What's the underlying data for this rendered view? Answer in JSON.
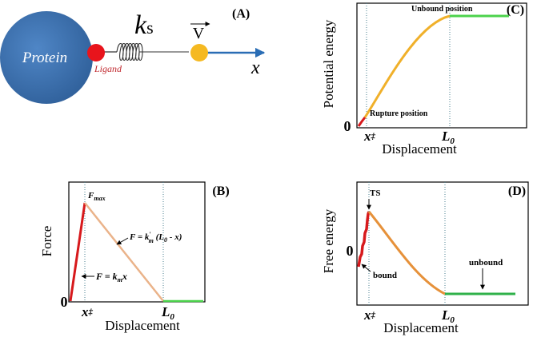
{
  "panel_a": {
    "tag": "(A)",
    "protein": "Protein",
    "ligand": "Ligand",
    "spring": {
      "base": "k",
      "sub": "s"
    },
    "velocity": "V",
    "axis": "x"
  },
  "panel_c": {
    "tag": "(C)",
    "y_label": "Potential energy",
    "zero": "0",
    "unbound": "Unbound position",
    "rupture": "Rupture position",
    "x_ts": {
      "base": "x",
      "sup": "‡"
    },
    "l0": {
      "base": "L",
      "sub": "0"
    },
    "x_label": "Displacement"
  },
  "panel_b": {
    "tag": "(B)",
    "y_label": "Force",
    "zero": "0",
    "fmax": {
      "base": "F",
      "sub": "max"
    },
    "formula_slope": [
      "F = k",
      "′",
      "m",
      " (L",
      "0",
      " - x)"
    ],
    "formula_rise": [
      "F = k",
      "m",
      "x"
    ],
    "x_ts": {
      "base": "x",
      "sup": "‡"
    },
    "l0": {
      "base": "L",
      "sub": "0"
    },
    "x_label": "Displacement"
  },
  "panel_d": {
    "tag": "(D)",
    "y_label": "Free energy",
    "zero": "0",
    "ts": "TS",
    "bound": "bound",
    "unbound": "unbound",
    "x_ts": {
      "base": "x",
      "sup": "‡"
    },
    "l0": {
      "base": "L",
      "sub": "0"
    },
    "x_label": "Displacement"
  }
}
